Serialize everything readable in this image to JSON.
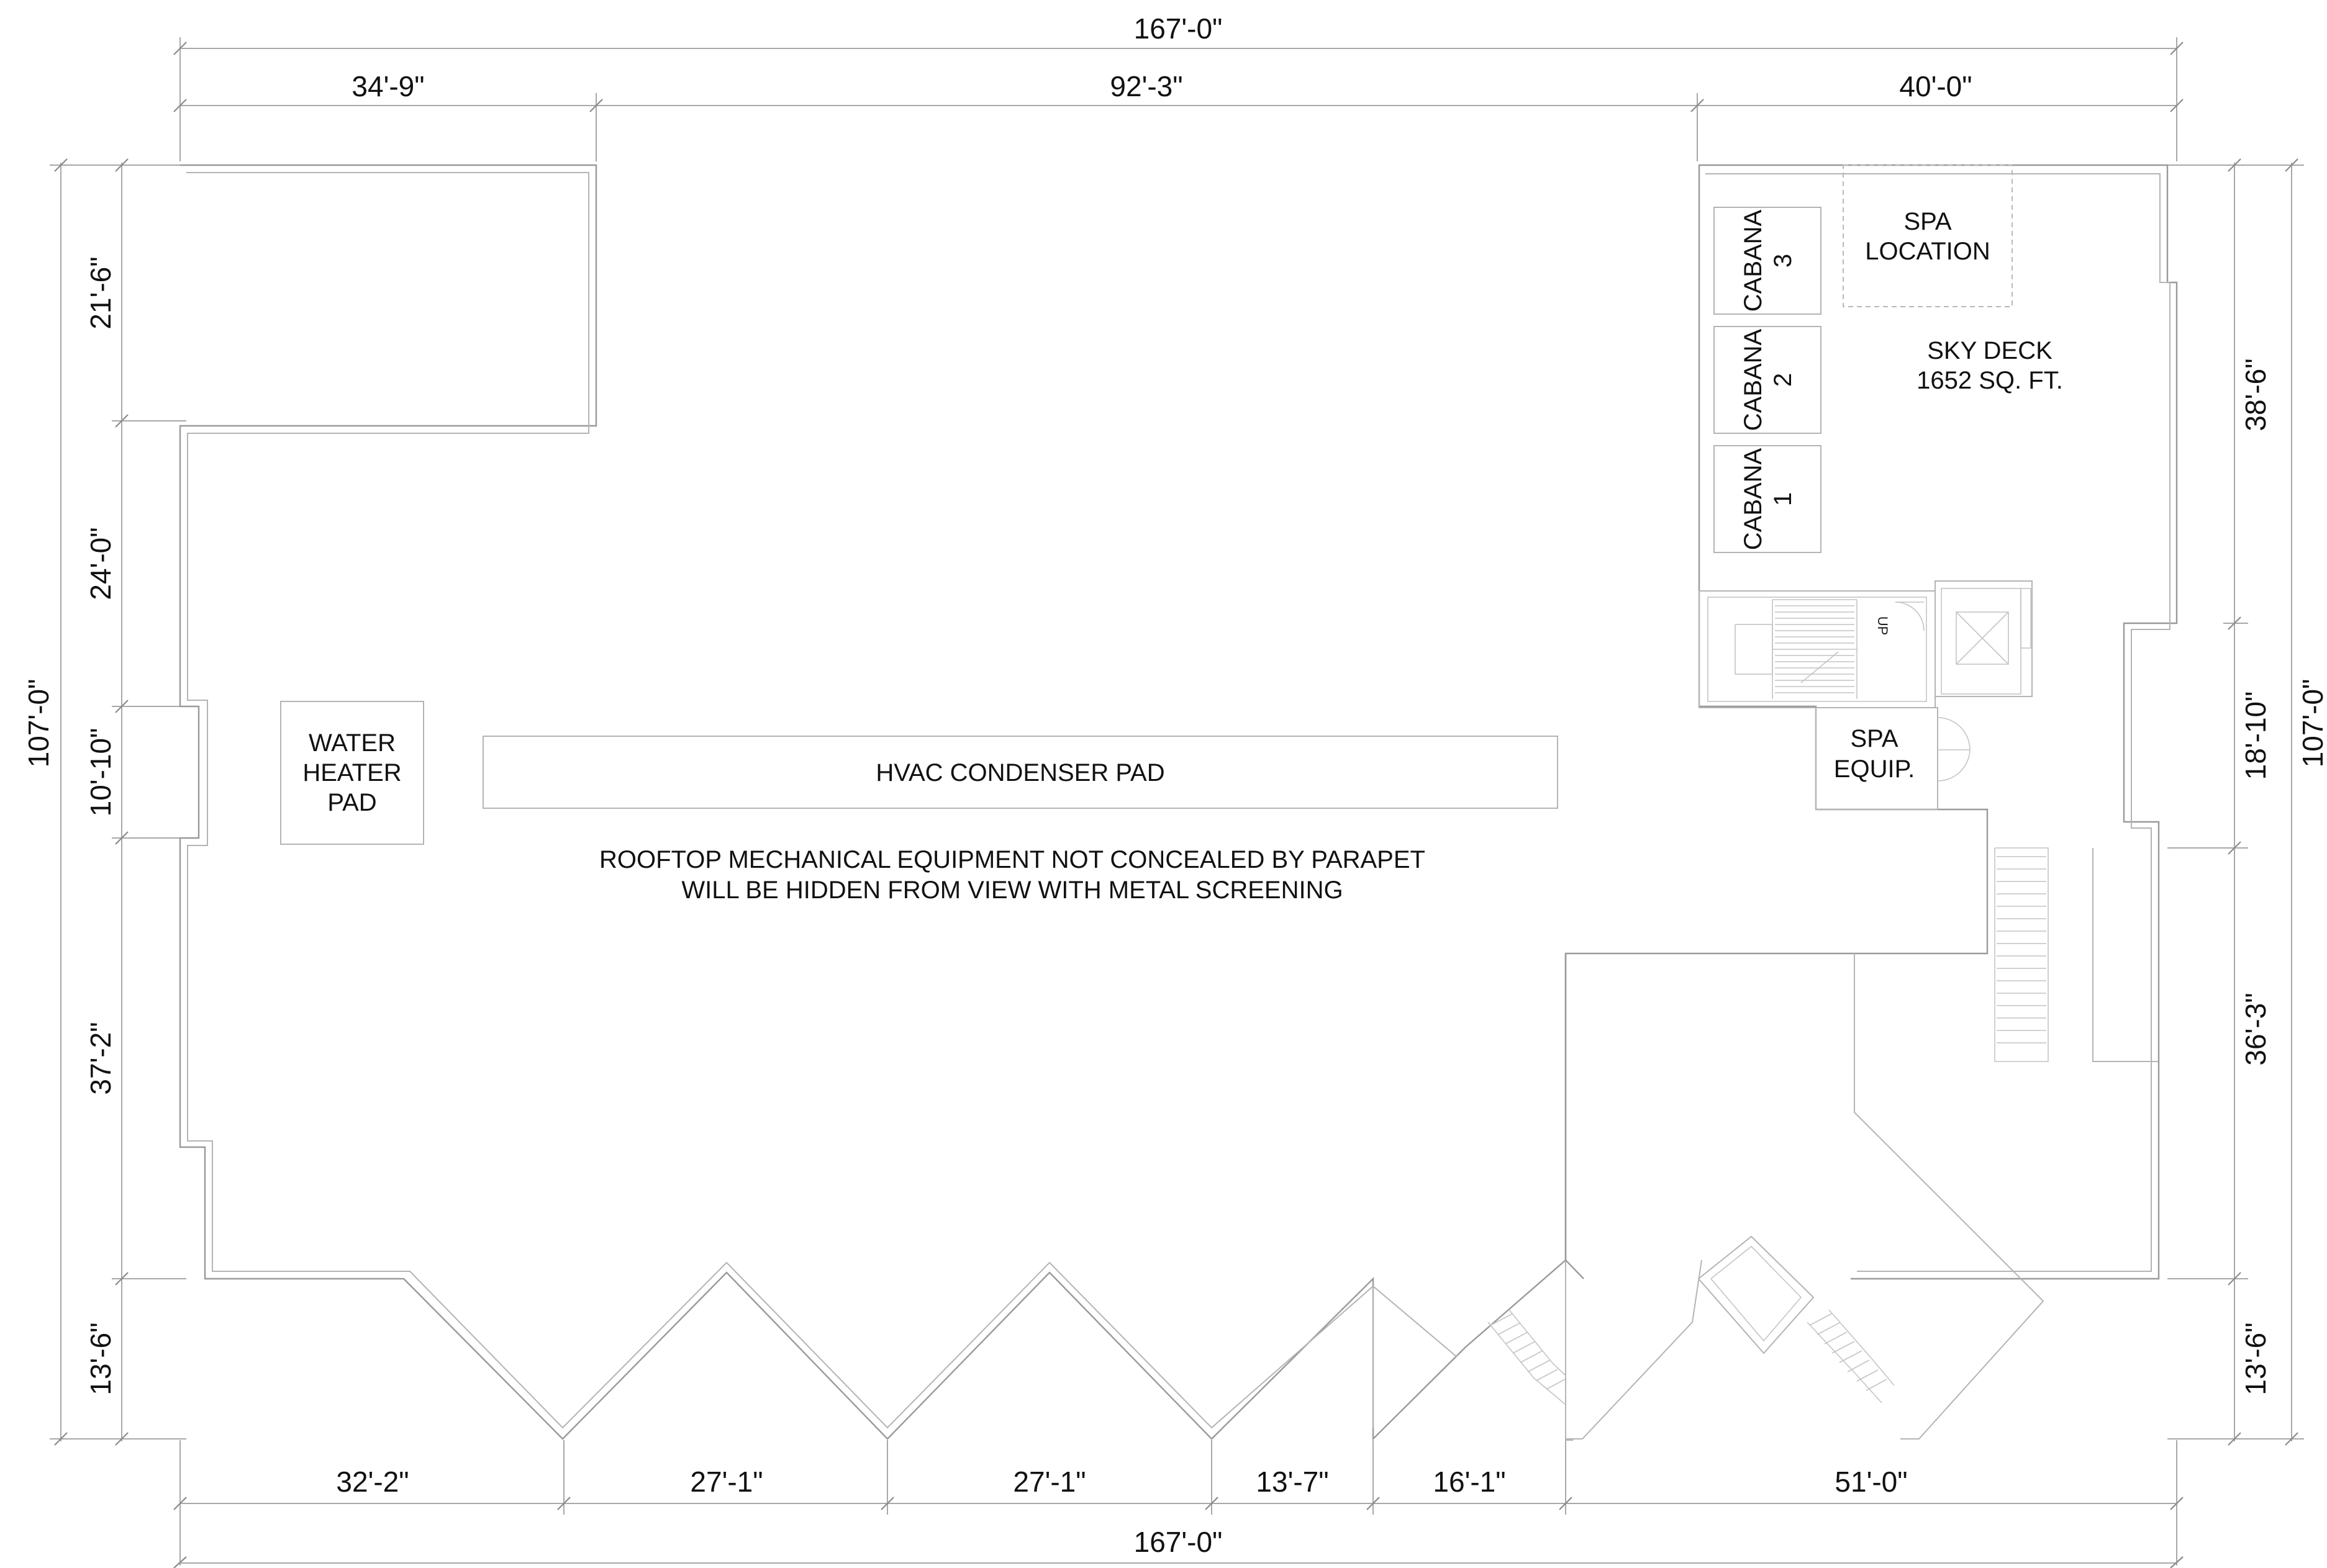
{
  "dimensions": {
    "top_overall": "167'-0\"",
    "top_segments": [
      "34'-9\"",
      "92'-3\"",
      "40'-0\""
    ],
    "bottom_overall": "167'-0\"",
    "bottom_segments": [
      "32'-2\"",
      "27'-1\"",
      "27'-1\"",
      "13'-7\"",
      "16'-1\"",
      "51'-0\""
    ],
    "left_overall": "107'-0\"",
    "left_segments": [
      "21'-6\"",
      "24'-0\"",
      "10'-10\"",
      "37'-2\"",
      "13'-6\""
    ],
    "right_overall": "107'-0\"",
    "right_segments": [
      "38'-6\"",
      "18'-10\"",
      "36'-3\"",
      "13'-6\""
    ]
  },
  "labels": {
    "spa_location": [
      "SPA",
      "LOCATION"
    ],
    "sky_deck": [
      "SKY DECK",
      "1652 SQ. FT."
    ],
    "cabana_3": [
      "CABANA",
      "3"
    ],
    "cabana_2": [
      "CABANA",
      "2"
    ],
    "cabana_1": [
      "CABANA",
      "1"
    ],
    "spa_equip": [
      "SPA",
      "EQUIP."
    ],
    "water_heater": [
      "WATER",
      "HEATER",
      "PAD"
    ],
    "hvac": "HVAC CONDENSER PAD",
    "note": [
      "ROOFTOP MECHANICAL EQUIPMENT NOT CONCEALED BY PARAPET",
      "WILL BE HIDDEN FROM VIEW WITH METAL SCREENING"
    ],
    "stair_tag": "UP"
  }
}
